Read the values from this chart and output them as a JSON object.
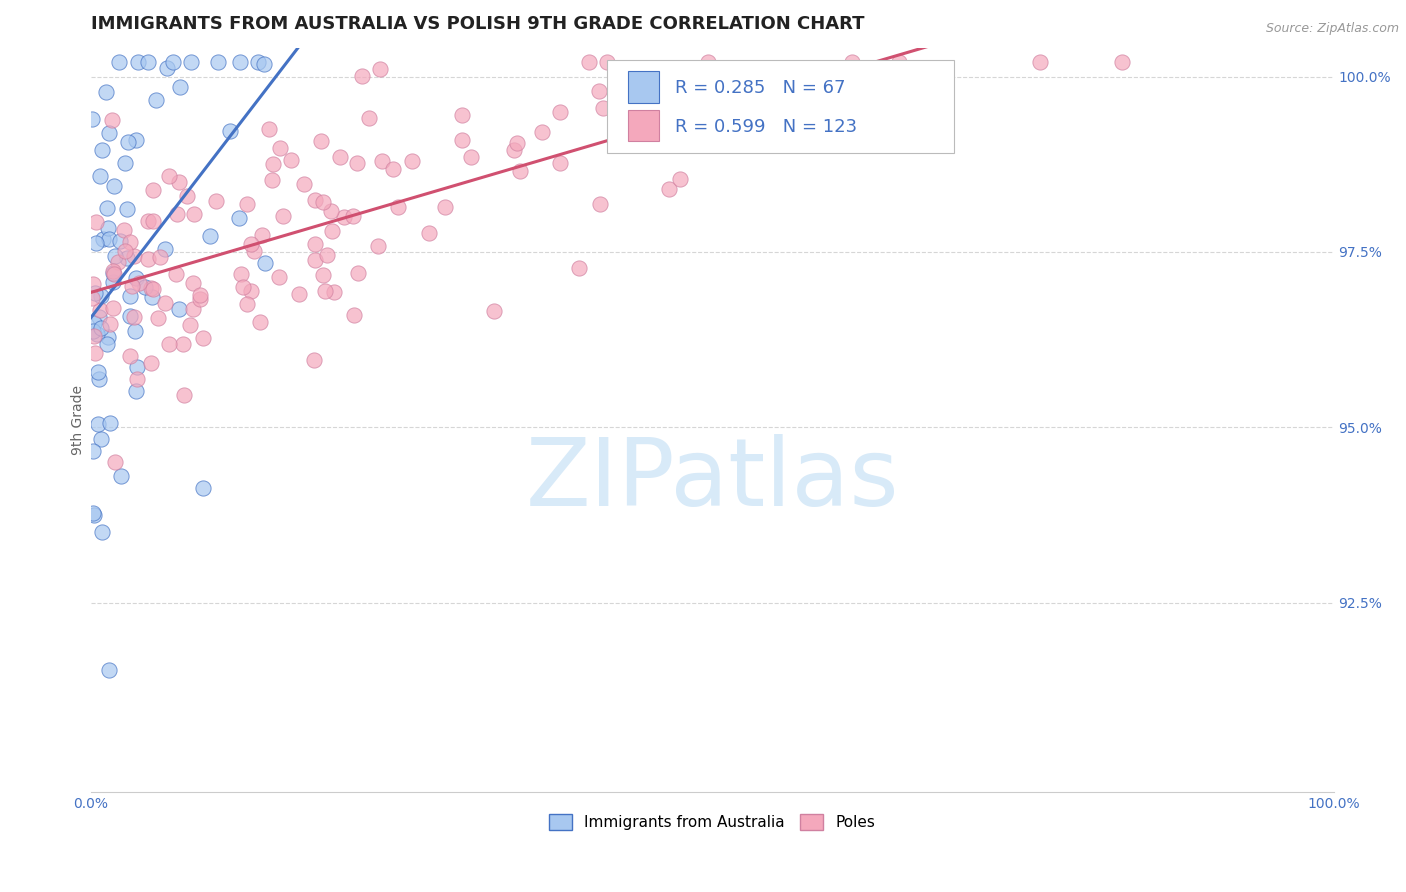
{
  "title": "IMMIGRANTS FROM AUSTRALIA VS POLISH 9TH GRADE CORRELATION CHART",
  "source_text": "Source: ZipAtlas.com",
  "ylabel": "9th Grade",
  "x_tick_labels": [
    "0.0%",
    "100.0%"
  ],
  "y_tick_labels": [
    "92.5%",
    "95.0%",
    "97.5%",
    "100.0%"
  ],
  "x_range": [
    0.0,
    1.0
  ],
  "y_range": [
    0.898,
    1.004
  ],
  "y_ticks": [
    0.925,
    0.95,
    0.975,
    1.0
  ],
  "legend_labels": [
    "Immigrants from Australia",
    "Poles"
  ],
  "R_australia": 0.285,
  "N_australia": 67,
  "R_poles": 0.599,
  "N_poles": 123,
  "color_australia": "#A8C8F0",
  "color_poles": "#F4A8BC",
  "color_line_australia": "#4472C4",
  "color_line_poles": "#D05070",
  "color_text_blue": "#4472C4",
  "color_axis_label": "#666666",
  "watermark_color": "#D8EAF8",
  "background_color": "#FFFFFF",
  "grid_color": "#CCCCCC",
  "title_fontsize": 13,
  "axis_label_fontsize": 10,
  "tick_fontsize": 10,
  "legend_fontsize": 11,
  "stats_fontsize": 13
}
